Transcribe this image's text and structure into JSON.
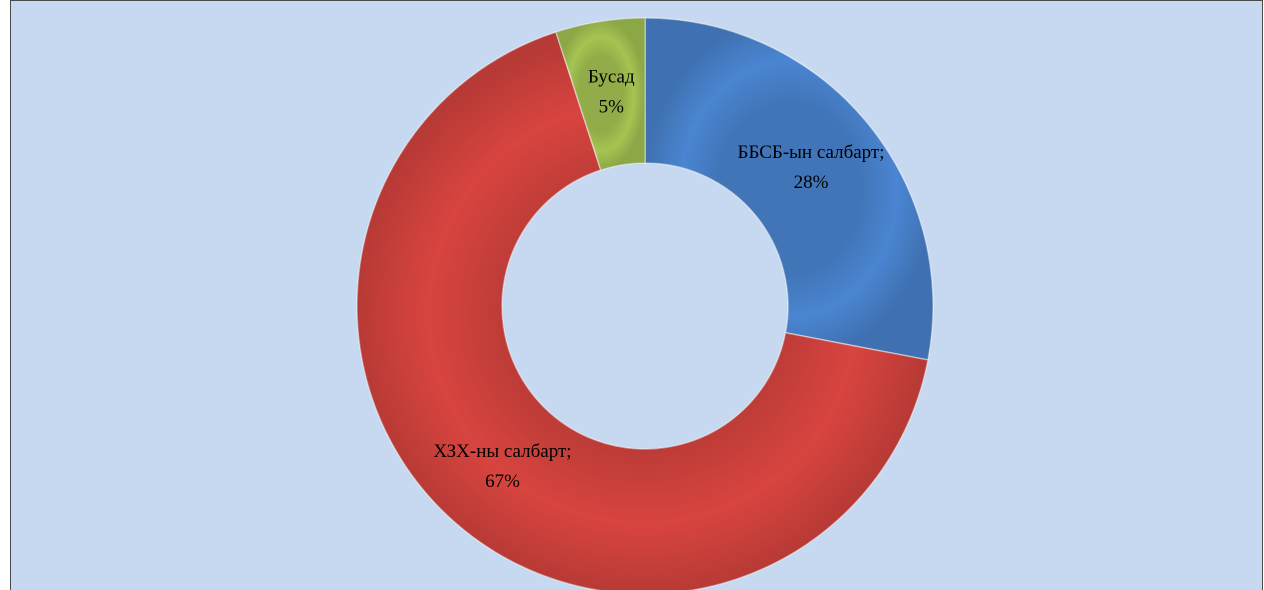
{
  "chart_data": {
    "type": "donut",
    "categories": [
      "ББСБ-ын салбарт;",
      "ХЗХ-ны салбарт;",
      "Бусад"
    ],
    "values": [
      28,
      67,
      5
    ],
    "value_labels": [
      "28%",
      "67%",
      "5%"
    ],
    "colors": [
      "#4a85d1",
      "#d8443f",
      "#a5c452"
    ]
  }
}
